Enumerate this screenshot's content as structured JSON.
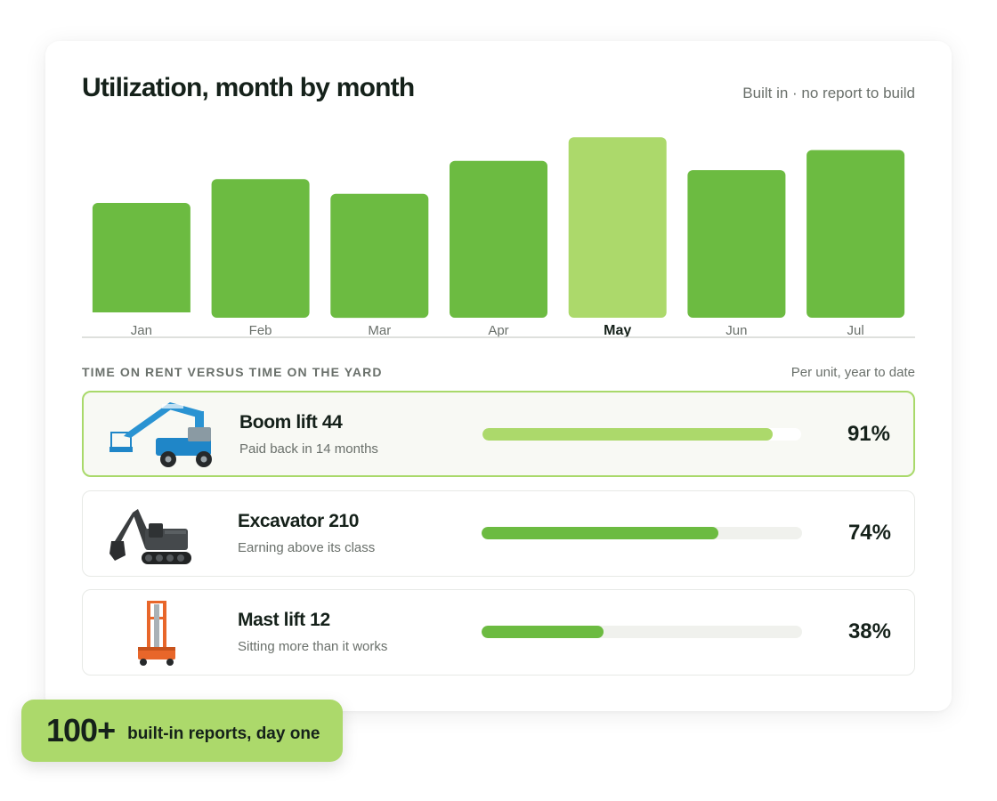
{
  "panel": {
    "title": "Utilization, month by month",
    "subtitle": "Built in · no report to build"
  },
  "chart_data": {
    "type": "bar",
    "categories": [
      "Jan",
      "Feb",
      "Mar",
      "Apr",
      "May",
      "Jun",
      "Jul"
    ],
    "values": [
      60,
      73,
      65,
      83,
      96,
      78,
      89
    ],
    "highlight": "May",
    "ylim": [
      0,
      100
    ],
    "grid": false,
    "bar_color": "#6cbb41",
    "highlight_color": "#acd96b",
    "baseline_color": "#d4d6d2"
  },
  "section": {
    "label": "TIME ON RENT VERSUS TIME ON THE YARD",
    "note": "Per unit, year to date"
  },
  "units": [
    {
      "name": "Boom lift 44",
      "note": "Paid back in 14 months",
      "percent_label": "91%",
      "fill_fraction": 0.91,
      "icon": "boom-lift-icon"
    },
    {
      "name": "Excavator 210",
      "note": "Earning above its class",
      "percent_label": "74%",
      "fill_fraction": 0.74,
      "icon": "excavator-icon"
    },
    {
      "name": "Mast lift 12",
      "note": "Sitting more than it works",
      "percent_label": "38%",
      "fill_fraction": 0.38,
      "icon": "mast-lift-icon"
    }
  ],
  "badge": {
    "number": "100+",
    "text": "built-in reports, day one"
  }
}
